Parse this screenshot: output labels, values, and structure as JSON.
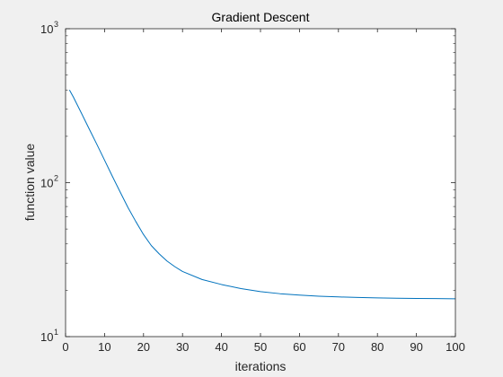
{
  "chart_data": {
    "type": "line",
    "title": "Gradient Descent",
    "xlabel": "iterations",
    "ylabel": "function value",
    "xlim": [
      0,
      100
    ],
    "ylim": [
      10,
      1000
    ],
    "yscale": "log",
    "grid": false,
    "x_ticks": [
      0,
      10,
      20,
      30,
      40,
      50,
      60,
      70,
      80,
      90,
      100
    ],
    "x_tick_labels": [
      "0",
      "10",
      "20",
      "30",
      "40",
      "50",
      "60",
      "70",
      "80",
      "90",
      "100"
    ],
    "y_ticks": [
      {
        "value": 10,
        "base": "10",
        "exponent": "1"
      },
      {
        "value": 100,
        "base": "10",
        "exponent": "2"
      },
      {
        "value": 1000,
        "base": "10",
        "exponent": "3"
      }
    ],
    "series": [
      {
        "color": "#0072bd",
        "x": [
          1,
          2,
          4,
          6,
          8,
          10,
          12,
          14,
          16,
          18,
          20,
          22,
          24,
          26,
          28,
          30,
          35,
          40,
          45,
          50,
          55,
          60,
          65,
          70,
          75,
          80,
          85,
          90,
          95,
          100
        ],
        "y": [
          400,
          360,
          285,
          225,
          178,
          140,
          110,
          87,
          69,
          56,
          46,
          39,
          34.5,
          31,
          28.5,
          26.5,
          23.5,
          21.8,
          20.5,
          19.6,
          19.0,
          18.6,
          18.3,
          18.1,
          17.95,
          17.85,
          17.75,
          17.7,
          17.65,
          17.6
        ]
      }
    ]
  }
}
